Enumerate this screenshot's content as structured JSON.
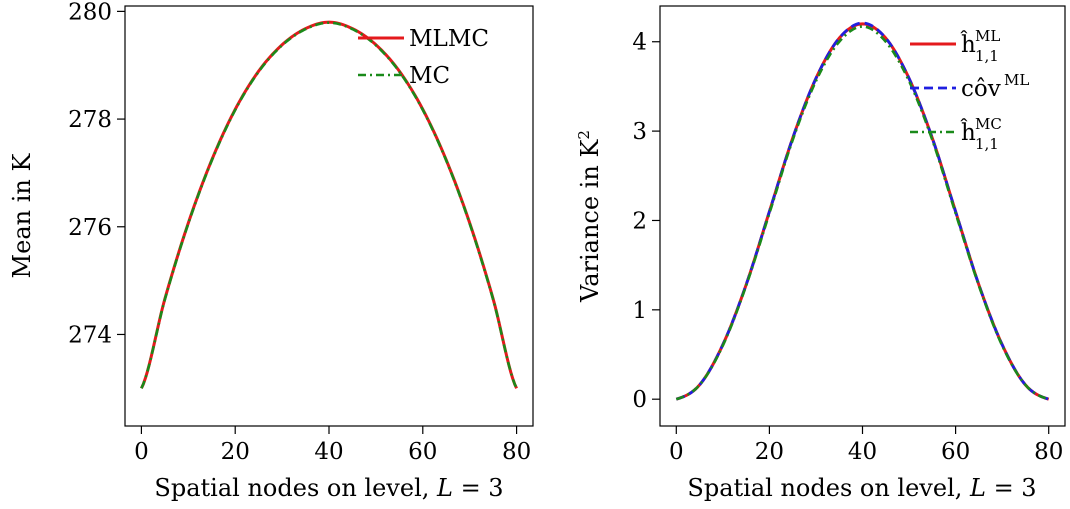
{
  "chart_data": [
    {
      "type": "line",
      "xlabel": "Spatial nodes on level, L = 3",
      "ylabel": "Mean in K",
      "xlim": [
        -3.5,
        83.5
      ],
      "ylim": [
        272.3,
        280.1
      ],
      "xticks": [
        0,
        20,
        40,
        60,
        80
      ],
      "yticks": [
        274,
        276,
        278,
        280
      ],
      "legend_position": "top-right",
      "series": [
        {
          "name": "MLMC",
          "color": "#e41a1c",
          "style": "solid",
          "x": [
            0,
            5,
            10,
            15,
            20,
            25,
            30,
            35,
            40,
            45,
            50,
            55,
            60,
            65,
            70,
            75,
            80
          ],
          "values": [
            273.0,
            274.66,
            276.07,
            277.24,
            278.18,
            278.89,
            279.38,
            279.68,
            279.8,
            279.68,
            279.38,
            278.89,
            278.18,
            277.24,
            276.07,
            274.66,
            273.0
          ]
        },
        {
          "name": "MC",
          "color": "#1a8a1a",
          "style": "dashdot",
          "x": [
            0,
            5,
            10,
            15,
            20,
            25,
            30,
            35,
            40,
            45,
            50,
            55,
            60,
            65,
            70,
            75,
            80
          ],
          "values": [
            273.0,
            274.65,
            276.06,
            277.23,
            278.17,
            278.88,
            279.37,
            279.67,
            279.79,
            279.67,
            279.37,
            278.88,
            278.17,
            277.23,
            276.06,
            274.65,
            273.0
          ]
        }
      ]
    },
    {
      "type": "line",
      "xlabel": "Spatial nodes on level, L = 3",
      "ylabel": "Variance in K²",
      "xlim": [
        -3.5,
        83.5
      ],
      "ylim": [
        -0.3,
        4.4
      ],
      "xticks": [
        0,
        20,
        40,
        60,
        80
      ],
      "yticks": [
        0,
        1,
        2,
        3,
        4
      ],
      "legend_position": "top-right",
      "series": [
        {
          "name": "ĥ",
          "superscript": "ML",
          "subscript": "1,1",
          "color": "#e41a1c",
          "style": "solid",
          "x": [
            0,
            5,
            10,
            15,
            20,
            25,
            30,
            35,
            40,
            45,
            50,
            55,
            60,
            65,
            70,
            75,
            80
          ],
          "values": [
            0.0,
            0.16,
            0.61,
            1.28,
            2.1,
            2.92,
            3.59,
            4.04,
            4.2,
            4.04,
            3.59,
            2.92,
            2.1,
            1.28,
            0.61,
            0.16,
            0.0
          ]
        },
        {
          "name": "côv",
          "superscript": "ML",
          "subscript": "",
          "color": "#1f1fe0",
          "style": "dashed",
          "x": [
            0,
            5,
            10,
            15,
            20,
            25,
            30,
            35,
            40,
            45,
            50,
            55,
            60,
            65,
            70,
            75,
            80
          ],
          "values": [
            0.0,
            0.16,
            0.61,
            1.28,
            2.1,
            2.92,
            3.59,
            4.04,
            4.21,
            4.04,
            3.59,
            2.92,
            2.1,
            1.28,
            0.61,
            0.16,
            0.0
          ]
        },
        {
          "name": "ĥ",
          "superscript": "MC",
          "subscript": "1,1",
          "color": "#1a8a1a",
          "style": "dashdot",
          "x": [
            0,
            5,
            10,
            15,
            20,
            25,
            30,
            35,
            40,
            45,
            50,
            55,
            60,
            65,
            70,
            75,
            80
          ],
          "values": [
            0.0,
            0.16,
            0.6,
            1.27,
            2.08,
            2.9,
            3.56,
            4.0,
            4.17,
            4.0,
            3.56,
            2.9,
            2.08,
            1.27,
            0.6,
            0.16,
            0.0
          ]
        }
      ]
    }
  ]
}
